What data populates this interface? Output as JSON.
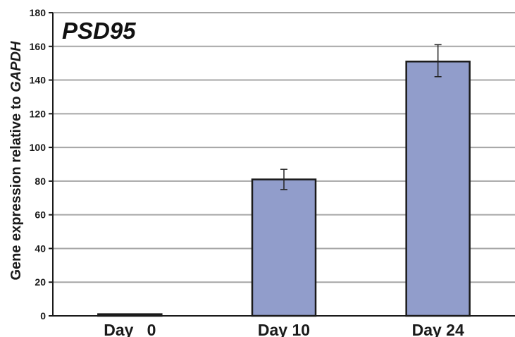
{
  "chart_data": {
    "type": "bar",
    "title": "PSD95",
    "ylabel_prefix": "Gene expression relative to ",
    "ylabel_gene": "GAPDH",
    "categories": [
      "Day   0",
      "Day 10",
      "Day 24"
    ],
    "values": [
      1,
      81,
      151
    ],
    "error_low": [
      null,
      75,
      142
    ],
    "error_high": [
      null,
      87,
      161
    ],
    "ylim": [
      0,
      180
    ],
    "yticks": [
      0,
      20,
      40,
      60,
      80,
      100,
      120,
      140,
      160,
      180
    ],
    "grid": true,
    "colors": {
      "bar_fill": "#919dcb",
      "bar_stroke": "#1a1a1a",
      "grid": "#a6a6a6",
      "axis": "#1a1a1a"
    }
  }
}
